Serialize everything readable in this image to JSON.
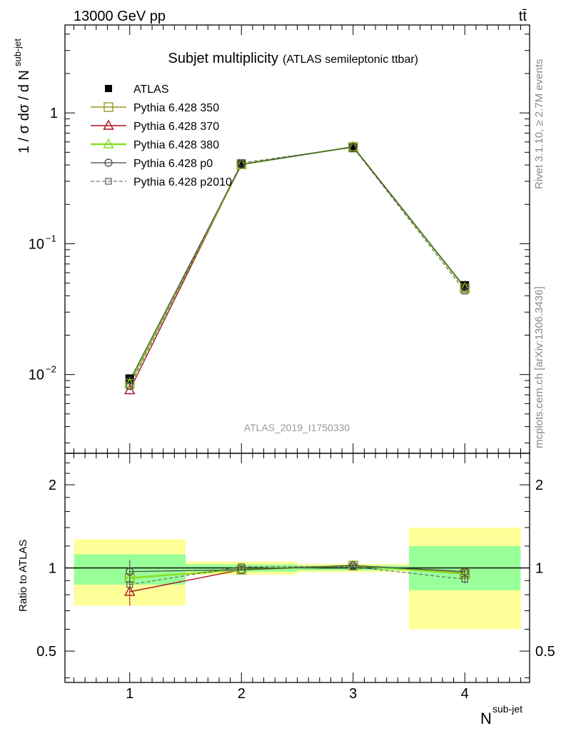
{
  "header": {
    "energy_label": "13000 GeV pp",
    "process_label": "tt̄"
  },
  "side_labels": {
    "rivet": "Rivet 3.1.10, ≥ 2.7M events",
    "mcplots": "mcplots.cern.ch [arXiv:1306.3436]"
  },
  "chart_data": {
    "type": "line",
    "title": "Subjet multiplicity",
    "subtitle": "(ATLAS semileptonic ttbar)",
    "watermark": "ATLAS_2019_I1750330",
    "x": [
      1,
      2,
      3,
      4
    ],
    "xlabel_base": "N",
    "xlabel_sup": "sub-jet",
    "xlim": [
      0.42,
      4.58
    ],
    "xticks": [
      "1",
      "2",
      "3",
      "4"
    ],
    "main": {
      "ylabel_main": "1 / σ dσ / d N",
      "ylabel_sup": "sub-jet",
      "yscale": "log",
      "ylim": [
        0.0025,
        4.7
      ],
      "ytick_labels": {
        "1": "1",
        "0.1": "10",
        "0.01": "10"
      },
      "ytick_sups": {
        "0.1": "−1",
        "0.01": "−2"
      }
    },
    "ratio": {
      "ylabel": "Ratio to ATLAS",
      "yscale": "log",
      "ylim": [
        0.385,
        2.6
      ],
      "ytick_labels": [
        "0.5",
        "1",
        "2"
      ],
      "bands": [
        {
          "x": [
            0.5,
            1.5
          ],
          "yellow": [
            0.73,
            1.27
          ],
          "green": [
            0.87,
            1.12
          ]
        },
        {
          "x": [
            1.5,
            2.5
          ],
          "yellow": [
            0.945,
            1.055
          ],
          "green": [
            0.97,
            1.03
          ]
        },
        {
          "x": [
            2.5,
            3.5
          ],
          "yellow": [
            0.965,
            1.035
          ],
          "green": [
            0.98,
            1.02
          ]
        },
        {
          "x": [
            3.5,
            4.5
          ],
          "yellow": [
            0.6,
            1.4
          ],
          "green": [
            0.83,
            1.2
          ]
        }
      ]
    },
    "data_series": {
      "name": "ATLAS",
      "values": [
        0.0093,
        0.41,
        0.54,
        0.048
      ],
      "err": [
        0.0006,
        0.012,
        0.013,
        0.004
      ],
      "color": "#000000"
    },
    "series": [
      {
        "name": "Pythia 6.428 350",
        "marker": "square",
        "dash": false,
        "color": "#999922",
        "lw": 1.4,
        "values": [
          0.0085,
          0.404,
          0.55,
          0.0455
        ],
        "ratio": [
          0.92,
          0.985,
          1.02,
          0.95
        ],
        "ratio_err": [
          0.035,
          0.01,
          0.012,
          0.03
        ]
      },
      {
        "name": "Pythia 6.428 370",
        "marker": "triangle",
        "dash": false,
        "color": "#aa1122",
        "lw": 1.4,
        "values": [
          0.0076,
          0.404,
          0.55,
          0.046
        ],
        "ratio": [
          0.82,
          0.985,
          1.02,
          0.96
        ],
        "ratio_err": [
          0.09,
          0.01,
          0.012,
          0.03
        ]
      },
      {
        "name": "Pythia 6.428 380",
        "marker": "triangle",
        "dash": false,
        "color": "#88dd22",
        "lw": 2.4,
        "values": [
          0.0085,
          0.404,
          0.55,
          0.046
        ],
        "ratio": [
          0.92,
          0.985,
          1.02,
          0.955
        ],
        "ratio_err": [
          0.035,
          0.01,
          0.012,
          0.03
        ]
      },
      {
        "name": "Pythia 6.428 p0",
        "marker": "circle",
        "dash": false,
        "color": "#444444",
        "lw": 1.2,
        "values": [
          0.009,
          0.404,
          0.55,
          0.0465
        ],
        "ratio": [
          0.97,
          0.985,
          1.02,
          0.97
        ],
        "ratio_err": [
          0.1,
          0.01,
          0.012,
          0.04
        ]
      },
      {
        "name": "Pythia 6.428 p2010",
        "marker": "square-small",
        "dash": true,
        "color": "#555555",
        "lw": 1.0,
        "values": [
          0.0081,
          0.415,
          0.545,
          0.0435
        ],
        "ratio": [
          0.87,
          1.01,
          1.01,
          0.91
        ],
        "ratio_err": [
          0.03,
          0.01,
          0.012,
          0.03
        ]
      }
    ]
  }
}
